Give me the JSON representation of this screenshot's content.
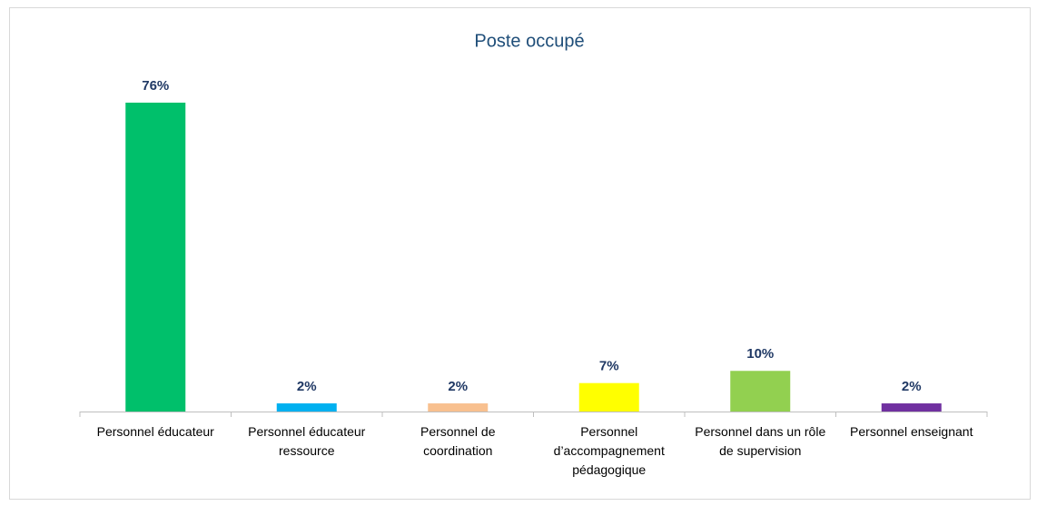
{
  "chart_data": {
    "type": "bar",
    "title": "Poste occupé",
    "categories": [
      "Personnel éducateur",
      "Personnel éducateur ressource",
      "Personnel de coordination",
      "Personnel d’accompagnement pédagogique",
      "Personnel dans un rôle de supervision",
      "Personnel enseignant"
    ],
    "values": [
      76,
      2,
      2,
      7,
      10,
      2
    ],
    "value_labels": [
      "76%",
      "2%",
      "2%",
      "7%",
      "10%",
      "2%"
    ],
    "colors": [
      "#00c06b",
      "#00b0f0",
      "#f8c08f",
      "#ffff00",
      "#92d050",
      "#7030a0"
    ]
  }
}
